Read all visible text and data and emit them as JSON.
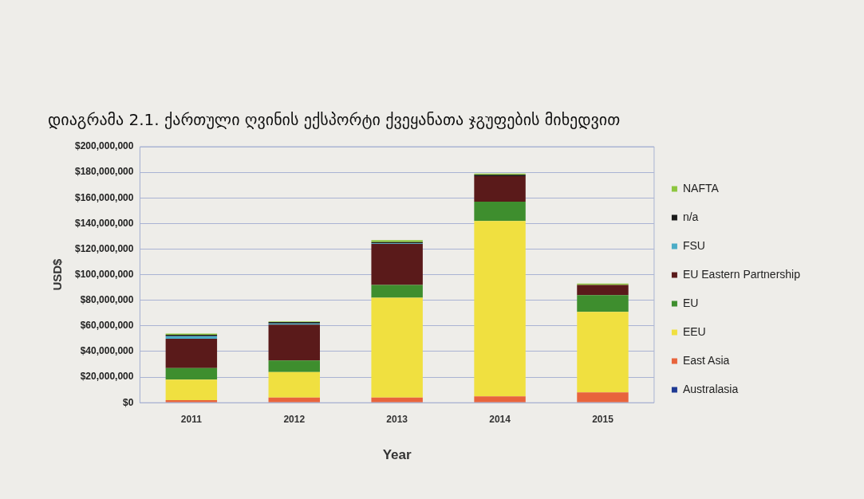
{
  "chart_data": {
    "type": "bar",
    "stacked": true,
    "title": "დიაგრამა 2.1. ქართული ღვინის ექსპორტი ქვეყანათა ჯგუფების მიხედვით",
    "xlabel": "Year",
    "ylabel": "USD$",
    "categories": [
      "2011",
      "2012",
      "2013",
      "2014",
      "2015"
    ],
    "series": [
      {
        "name": "Australasia",
        "color": "#1f3a93",
        "values": [
          0,
          0,
          0,
          0,
          0
        ]
      },
      {
        "name": "East Asia",
        "color": "#e8643c",
        "values": [
          2000000,
          4000000,
          4000000,
          5000000,
          8000000
        ]
      },
      {
        "name": "EEU",
        "color": "#f0e040",
        "values": [
          16000000,
          20000000,
          78000000,
          137000000,
          63000000
        ]
      },
      {
        "name": "EU",
        "color": "#3e8e2e",
        "values": [
          9000000,
          9000000,
          10000000,
          15000000,
          13000000
        ]
      },
      {
        "name": "EU Eastern Partnership",
        "color": "#5a1a1a",
        "values": [
          23000000,
          28000000,
          32000000,
          20000000,
          8000000
        ]
      },
      {
        "name": "FSU",
        "color": "#4bacc6",
        "values": [
          2000000,
          1000000,
          500000,
          0,
          0
        ]
      },
      {
        "name": "n/a",
        "color": "#1a1a1a",
        "values": [
          1000000,
          1000000,
          1000000,
          1000000,
          0
        ]
      },
      {
        "name": "NAFTA",
        "color": "#8dc63f",
        "values": [
          1000000,
          500000,
          1500000,
          1000000,
          1000000
        ]
      }
    ],
    "ylim": [
      0,
      200000000
    ],
    "yticks": [
      {
        "value": 0,
        "label": "$0"
      },
      {
        "value": 20000000,
        "label": "$20,000,000"
      },
      {
        "value": 40000000,
        "label": "$40,000,000"
      },
      {
        "value": 60000000,
        "label": "$60,000,000"
      },
      {
        "value": 80000000,
        "label": "$80,000,000"
      },
      {
        "value": 100000000,
        "label": "$100,000,000"
      },
      {
        "value": 120000000,
        "label": "$120,000,000"
      },
      {
        "value": 140000000,
        "label": "$140,000,000"
      },
      {
        "value": 160000000,
        "label": "$160,000,000"
      },
      {
        "value": 180000000,
        "label": "$180,000,000"
      },
      {
        "value": 200000000,
        "label": "$200,000,000"
      }
    ],
    "grid": "y",
    "legend": "right"
  }
}
